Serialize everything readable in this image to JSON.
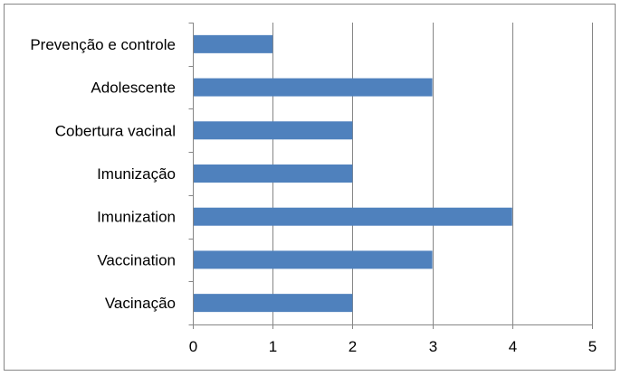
{
  "chart_data": {
    "type": "bar",
    "orientation": "horizontal",
    "categories": [
      "Prevenção e controle",
      "Adolescente",
      "Cobertura vacinal",
      "Imunização",
      "Imunization",
      "Vaccination",
      "Vacinação"
    ],
    "values": [
      1,
      3,
      2,
      2,
      4,
      3,
      2
    ],
    "xlim": [
      0,
      5
    ],
    "xticks": [
      "0",
      "1",
      "2",
      "3",
      "4",
      "5"
    ],
    "title": "",
    "xlabel": "",
    "ylabel": "",
    "grid": "vertical major gridlines",
    "legend": "none",
    "bar_color": "#4F81BD",
    "grid_color": "#868686"
  }
}
